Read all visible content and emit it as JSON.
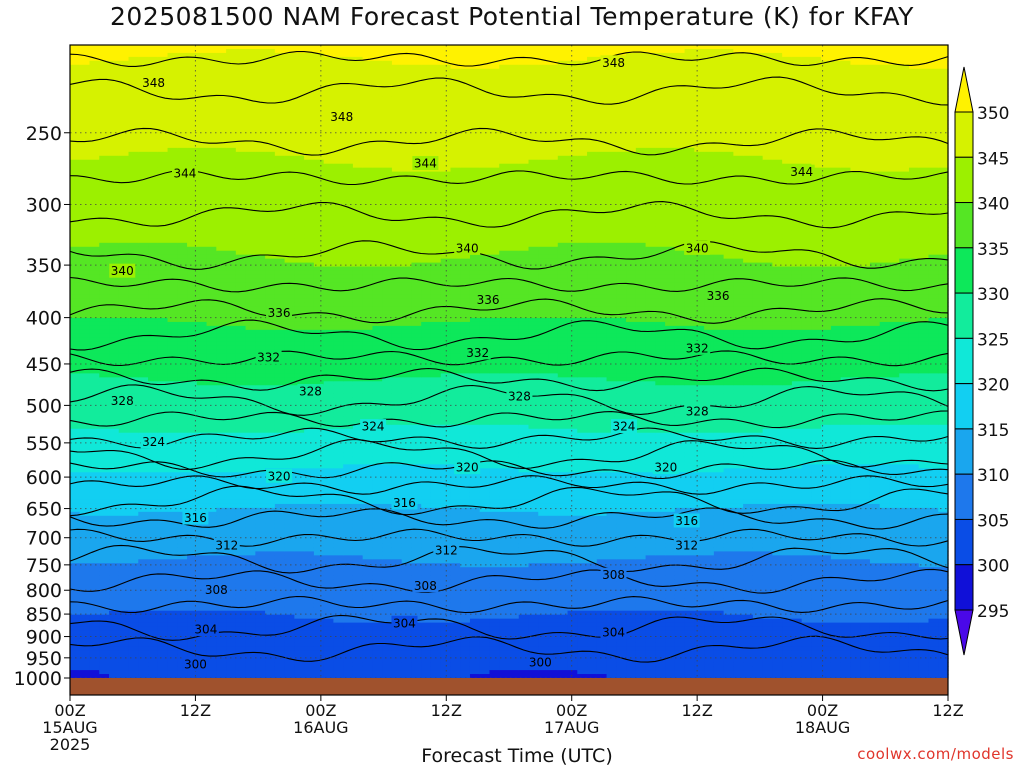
{
  "title": "2025081500 NAM Forecast Potential Temperature (K) for KFAY",
  "xlabel": "Forecast Time (UTC)",
  "credit": "coolwx.com/models",
  "chart_data": {
    "type": "heatmap",
    "title": "2025081500 NAM Forecast Potential Temperature (K) for KFAY",
    "xlabel": "Forecast Time (UTC)",
    "ylabel": "",
    "x_range_hours": [
      0,
      84
    ],
    "y_axis": {
      "label": "",
      "unit": "",
      "scale": "log-pressure",
      "ylim": [
        1000,
        200
      ]
    },
    "y_ticks": [
      250,
      300,
      350,
      400,
      450,
      500,
      550,
      600,
      650,
      700,
      750,
      800,
      850,
      900,
      950,
      1000
    ],
    "x_ticks": [
      {
        "hour": 0,
        "lines": [
          "00Z",
          "15AUG",
          "2025"
        ]
      },
      {
        "hour": 12,
        "lines": [
          "12Z"
        ]
      },
      {
        "hour": 24,
        "lines": [
          "00Z",
          "16AUG"
        ]
      },
      {
        "hour": 36,
        "lines": [
          "12Z"
        ]
      },
      {
        "hour": 48,
        "lines": [
          "00Z",
          "17AUG"
        ]
      },
      {
        "hour": 60,
        "lines": [
          "12Z"
        ]
      },
      {
        "hour": 72,
        "lines": [
          "00Z",
          "18AUG"
        ]
      },
      {
        "hour": 84,
        "lines": [
          "12Z"
        ]
      }
    ],
    "grid": true,
    "colorbar": {
      "placement": "right",
      "levels": [
        295,
        300,
        305,
        310,
        315,
        320,
        325,
        330,
        335,
        340,
        345,
        350
      ],
      "colors": [
        "#4a08e8",
        "#1010d8",
        "#0a4de6",
        "#1e78ec",
        "#1aa6ee",
        "#12cff2",
        "#10e8d8",
        "#12ec9c",
        "#0de85a",
        "#55e624",
        "#9cf000",
        "#d6f200",
        "#fff200"
      ],
      "labels": [
        "295",
        "300",
        "305",
        "310",
        "315",
        "320",
        "325",
        "330",
        "335",
        "340",
        "345",
        "350"
      ]
    },
    "contour_interval": 2,
    "contour_labels": [
      {
        "value": 348,
        "hour": 8,
        "pressure": 220
      },
      {
        "value": 348,
        "hour": 26,
        "pressure": 240
      },
      {
        "value": 348,
        "hour": 52,
        "pressure": 209
      },
      {
        "value": 344,
        "hour": 11,
        "pressure": 277
      },
      {
        "value": 344,
        "hour": 34,
        "pressure": 270
      },
      {
        "value": 344,
        "hour": 70,
        "pressure": 276
      },
      {
        "value": 340,
        "hour": 5,
        "pressure": 355
      },
      {
        "value": 340,
        "hour": 38,
        "pressure": 335
      },
      {
        "value": 340,
        "hour": 60,
        "pressure": 335
      },
      {
        "value": 336,
        "hour": 20,
        "pressure": 395
      },
      {
        "value": 336,
        "hour": 40,
        "pressure": 382
      },
      {
        "value": 336,
        "hour": 62,
        "pressure": 378
      },
      {
        "value": 332,
        "hour": 19,
        "pressure": 442
      },
      {
        "value": 332,
        "hour": 39,
        "pressure": 437
      },
      {
        "value": 332,
        "hour": 60,
        "pressure": 432
      },
      {
        "value": 328,
        "hour": 5,
        "pressure": 494
      },
      {
        "value": 328,
        "hour": 23,
        "pressure": 482
      },
      {
        "value": 328,
        "hour": 43,
        "pressure": 488
      },
      {
        "value": 328,
        "hour": 60,
        "pressure": 507
      },
      {
        "value": 324,
        "hour": 8,
        "pressure": 548
      },
      {
        "value": 324,
        "hour": 29,
        "pressure": 527
      },
      {
        "value": 324,
        "hour": 53,
        "pressure": 527
      },
      {
        "value": 320,
        "hour": 20,
        "pressure": 598
      },
      {
        "value": 320,
        "hour": 38,
        "pressure": 585
      },
      {
        "value": 320,
        "hour": 57,
        "pressure": 585
      },
      {
        "value": 316,
        "hour": 12,
        "pressure": 665
      },
      {
        "value": 316,
        "hour": 32,
        "pressure": 640
      },
      {
        "value": 316,
        "hour": 59,
        "pressure": 670
      },
      {
        "value": 312,
        "hour": 15,
        "pressure": 713
      },
      {
        "value": 312,
        "hour": 36,
        "pressure": 722
      },
      {
        "value": 312,
        "hour": 59,
        "pressure": 713
      },
      {
        "value": 308,
        "hour": 14,
        "pressure": 798
      },
      {
        "value": 308,
        "hour": 34,
        "pressure": 790
      },
      {
        "value": 308,
        "hour": 52,
        "pressure": 769
      },
      {
        "value": 304,
        "hour": 13,
        "pressure": 883
      },
      {
        "value": 304,
        "hour": 32,
        "pressure": 869
      },
      {
        "value": 304,
        "hour": 52,
        "pressure": 890
      },
      {
        "value": 300,
        "hour": 12,
        "pressure": 965
      },
      {
        "value": 300,
        "hour": 45,
        "pressure": 960
      }
    ],
    "levels_profile": [
      {
        "p": 1000,
        "theta": 300.2
      },
      {
        "p": 950,
        "theta": 301.2
      },
      {
        "p": 900,
        "theta": 303.2
      },
      {
        "p": 850,
        "theta": 305.2
      },
      {
        "p": 800,
        "theta": 307.2
      },
      {
        "p": 750,
        "theta": 309.5
      },
      {
        "p": 700,
        "theta": 312
      },
      {
        "p": 650,
        "theta": 315
      },
      {
        "p": 600,
        "theta": 319
      },
      {
        "p": 550,
        "theta": 323.5
      },
      {
        "p": 500,
        "theta": 327.5
      },
      {
        "p": 450,
        "theta": 331.5
      },
      {
        "p": 400,
        "theta": 335.5
      },
      {
        "p": 350,
        "theta": 339.5
      },
      {
        "p": 300,
        "theta": 342.5
      },
      {
        "p": 250,
        "theta": 346.5
      },
      {
        "p": 220,
        "theta": 348.3
      },
      {
        "p": 200,
        "theta": 351
      }
    ]
  }
}
